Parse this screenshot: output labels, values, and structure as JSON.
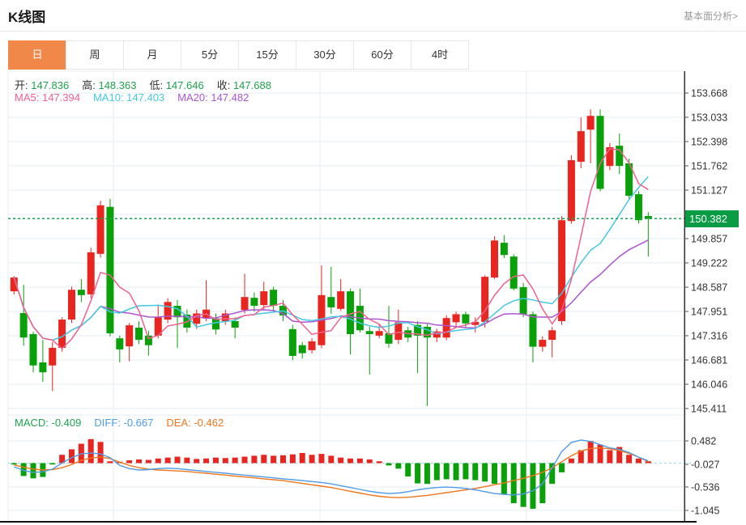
{
  "header": {
    "title": "K线图",
    "link": "基本面分析>"
  },
  "tabs": {
    "items": [
      "日",
      "周",
      "月",
      "5分",
      "15分",
      "30分",
      "60分",
      "4时"
    ],
    "active_index": 0
  },
  "ohlc_legend": [
    {
      "label": "开:",
      "value": "147.836"
    },
    {
      "label": "高:",
      "value": "148.363"
    },
    {
      "label": "低:",
      "value": "147.646"
    },
    {
      "label": "收:",
      "value": "147.688"
    }
  ],
  "ma_legend": [
    {
      "label": "MA5:",
      "value": "147.394",
      "color": "#f0618f"
    },
    {
      "label": "MA10:",
      "value": "147.403",
      "color": "#45c8e2"
    },
    {
      "label": "MA20:",
      "value": "147.482",
      "color": "#ad55d2"
    }
  ],
  "macd_legend": [
    {
      "label": "MACD:",
      "value": "-0.409",
      "color": "#1fa24d"
    },
    {
      "label": "DIFF:",
      "value": "-0.667",
      "color": "#4f9be5"
    },
    {
      "label": "DEA:",
      "value": "-0.462",
      "color": "#f0761c"
    }
  ],
  "price_tag": "150.382",
  "colors": {
    "up": "#e8251f",
    "down": "#0aa00a",
    "text_green": "#1fa24d",
    "ma5": "#f0618f",
    "ma10": "#45c8e2",
    "ma20": "#ad55d2",
    "diff": "#4f9be5",
    "dea": "#f0761c",
    "grid": "#e7edf3",
    "axis": "#333333",
    "dashed_zero": "#9fd8ea",
    "current_line": "#14a94f",
    "tag_bg": "#089d45",
    "tab_active_bg": "#f0884a",
    "tab_border": "#e6e6e6",
    "link": "#999999",
    "label": "#333333"
  },
  "chart_data": [
    {
      "type": "candlestick",
      "panel": "main",
      "ylim": [
        145.411,
        153.668
      ],
      "yticks": [
        "153.668",
        "153.033",
        "152.398",
        "151.762",
        "151.127",
        "150.492",
        "149.857",
        "149.222",
        "148.587",
        "147.951",
        "147.316",
        "146.681",
        "146.046",
        "145.411"
      ],
      "grid": true,
      "current_price": 150.382,
      "ma_periods": [
        5,
        10,
        20
      ],
      "candles": [
        [
          148.48,
          148.88,
          148.4,
          148.84
        ],
        [
          147.91,
          148.65,
          147.06,
          147.27
        ],
        [
          147.36,
          147.42,
          146.36,
          146.54
        ],
        [
          146.62,
          147.21,
          146.11,
          146.36
        ],
        [
          146.54,
          147.15,
          145.87,
          147.0
        ],
        [
          147.0,
          147.8,
          146.9,
          147.74
        ],
        [
          147.74,
          148.6,
          147.65,
          148.52
        ],
        [
          148.52,
          148.8,
          148.2,
          148.38
        ],
        [
          148.4,
          149.62,
          148.3,
          149.5
        ],
        [
          149.46,
          150.85,
          149.36,
          150.73
        ],
        [
          150.69,
          150.9,
          147.3,
          147.38
        ],
        [
          147.25,
          147.32,
          146.62,
          146.96
        ],
        [
          147.04,
          147.65,
          146.65,
          147.59
        ],
        [
          147.53,
          147.7,
          147.1,
          147.21
        ],
        [
          147.32,
          147.45,
          146.8,
          147.07
        ],
        [
          147.32,
          148.13,
          147.25,
          147.8
        ],
        [
          147.74,
          148.3,
          147.65,
          148.2
        ],
        [
          148.1,
          148.25,
          147.0,
          147.8
        ],
        [
          147.87,
          148.0,
          147.4,
          147.53
        ],
        [
          147.63,
          148.0,
          147.5,
          147.9
        ],
        [
          147.77,
          148.77,
          147.7,
          148.0
        ],
        [
          147.77,
          147.9,
          147.35,
          147.48
        ],
        [
          147.7,
          148.0,
          147.6,
          147.9
        ],
        [
          147.7,
          147.8,
          147.25,
          147.53
        ],
        [
          147.99,
          148.94,
          147.9,
          148.33
        ],
        [
          148.31,
          148.45,
          147.95,
          148.1
        ],
        [
          148.12,
          148.73,
          148.0,
          148.48
        ],
        [
          148.52,
          148.6,
          147.95,
          148.1
        ],
        [
          148.1,
          148.25,
          147.7,
          147.85
        ],
        [
          147.49,
          147.6,
          146.68,
          146.79
        ],
        [
          147.07,
          147.15,
          146.72,
          146.86
        ],
        [
          146.94,
          147.25,
          146.85,
          147.17
        ],
        [
          147.07,
          149.16,
          146.99,
          148.38
        ],
        [
          148.33,
          149.12,
          147.89,
          148.06
        ],
        [
          148.02,
          148.8,
          147.97,
          148.48
        ],
        [
          148.48,
          148.55,
          146.83,
          147.36
        ],
        [
          148.1,
          148.55,
          147.4,
          147.46
        ],
        [
          147.44,
          147.55,
          146.3,
          147.36
        ],
        [
          147.32,
          147.6,
          147.25,
          147.44
        ],
        [
          147.38,
          148.1,
          147.0,
          147.11
        ],
        [
          147.21,
          148.0,
          147.1,
          147.67
        ],
        [
          147.46,
          147.55,
          147.15,
          147.27
        ],
        [
          147.6,
          147.7,
          146.34,
          147.32
        ],
        [
          147.55,
          147.62,
          145.48,
          147.27
        ],
        [
          147.27,
          147.5,
          147.15,
          147.43
        ],
        [
          147.27,
          147.85,
          147.2,
          147.78
        ],
        [
          147.67,
          147.95,
          147.55,
          147.88
        ],
        [
          147.88,
          147.95,
          147.52,
          147.64
        ],
        [
          147.6,
          147.8,
          147.4,
          147.68
        ],
        [
          147.68,
          148.9,
          147.53,
          148.86
        ],
        [
          148.84,
          149.92,
          148.8,
          149.81
        ],
        [
          149.75,
          149.95,
          149.35,
          149.43
        ],
        [
          149.39,
          149.45,
          148.5,
          148.55
        ],
        [
          148.59,
          148.7,
          147.8,
          147.88
        ],
        [
          147.88,
          147.95,
          146.62,
          147.03
        ],
        [
          147.03,
          147.3,
          146.9,
          147.21
        ],
        [
          147.21,
          147.55,
          146.75,
          147.46
        ],
        [
          147.7,
          150.45,
          147.6,
          150.34
        ],
        [
          150.32,
          152.04,
          150.25,
          151.91
        ],
        [
          151.87,
          153.03,
          151.7,
          152.67
        ],
        [
          152.71,
          153.24,
          151.83,
          153.07
        ],
        [
          153.07,
          153.24,
          151.1,
          151.16
        ],
        [
          151.76,
          152.36,
          151.65,
          152.25
        ],
        [
          152.29,
          152.61,
          151.55,
          151.76
        ],
        [
          151.83,
          151.95,
          150.9,
          150.98
        ],
        [
          151.02,
          151.1,
          150.25,
          150.34
        ],
        [
          150.45,
          150.55,
          149.39,
          150.38
        ]
      ]
    },
    {
      "type": "bar",
      "panel": "macd",
      "ylim": [
        -1.045,
        0.482
      ],
      "yticks": [
        "0.482",
        "-0.027",
        "-0.536",
        "-1.045"
      ],
      "grid": true,
      "series": [
        {
          "name": "MACD",
          "style": "bar",
          "values": [
            -0.03,
            -0.28,
            -0.33,
            -0.3,
            -0.03,
            0.18,
            0.3,
            0.42,
            0.52,
            0.46,
            0.04,
            0.03,
            0.06,
            0.08,
            0.07,
            0.1,
            0.12,
            0.14,
            0.12,
            0.09,
            0.1,
            0.12,
            0.11,
            0.12,
            0.14,
            0.16,
            0.18,
            0.16,
            0.17,
            0.19,
            0.22,
            0.18,
            0.2,
            0.16,
            0.12,
            0.1,
            0.1,
            0.08,
            0.04,
            -0.05,
            -0.12,
            -0.29,
            -0.44,
            -0.45,
            -0.37,
            -0.35,
            -0.37,
            -0.35,
            -0.37,
            -0.4,
            -0.45,
            -0.67,
            -0.87,
            -0.95,
            -0.99,
            -0.87,
            -0.45,
            -0.2,
            0.1,
            0.28,
            0.48,
            0.4,
            0.28,
            0.35,
            0.18,
            0.1,
            0.04
          ]
        },
        {
          "name": "DIFF",
          "style": "line",
          "values": [
            -0.08,
            -0.16,
            -0.2,
            -0.19,
            -0.13,
            0.0,
            0.12,
            0.2,
            0.22,
            0.2,
            0.12,
            -0.05,
            -0.12,
            -0.15,
            -0.14,
            -0.12,
            -0.11,
            -0.12,
            -0.14,
            -0.16,
            -0.18,
            -0.2,
            -0.22,
            -0.24,
            -0.26,
            -0.28,
            -0.3,
            -0.32,
            -0.34,
            -0.36,
            -0.38,
            -0.4,
            -0.42,
            -0.45,
            -0.49,
            -0.53,
            -0.57,
            -0.61,
            -0.64,
            -0.66,
            -0.65,
            -0.62,
            -0.58,
            -0.55,
            -0.53,
            -0.52,
            -0.53,
            -0.55,
            -0.58,
            -0.62,
            -0.66,
            -0.68,
            -0.69,
            -0.67,
            -0.6,
            -0.45,
            -0.1,
            0.25,
            0.45,
            0.5,
            0.47,
            0.4,
            0.33,
            0.3,
            0.23,
            0.13,
            0.05
          ]
        },
        {
          "name": "DEA",
          "style": "line",
          "values": [
            -0.04,
            -0.09,
            -0.13,
            -0.15,
            -0.14,
            -0.1,
            -0.03,
            0.06,
            0.11,
            0.13,
            0.1,
            0.02,
            -0.05,
            -0.1,
            -0.13,
            -0.15,
            -0.16,
            -0.17,
            -0.18,
            -0.2,
            -0.22,
            -0.24,
            -0.26,
            -0.28,
            -0.3,
            -0.32,
            -0.34,
            -0.36,
            -0.38,
            -0.41,
            -0.44,
            -0.47,
            -0.5,
            -0.53,
            -0.57,
            -0.61,
            -0.65,
            -0.69,
            -0.72,
            -0.74,
            -0.75,
            -0.74,
            -0.72,
            -0.7,
            -0.67,
            -0.64,
            -0.61,
            -0.58,
            -0.55,
            -0.51,
            -0.47,
            -0.43,
            -0.38,
            -0.33,
            -0.27,
            -0.2,
            -0.1,
            0.03,
            0.16,
            0.26,
            0.32,
            0.33,
            0.31,
            0.27,
            0.21,
            0.13,
            0.03
          ]
        }
      ]
    }
  ]
}
